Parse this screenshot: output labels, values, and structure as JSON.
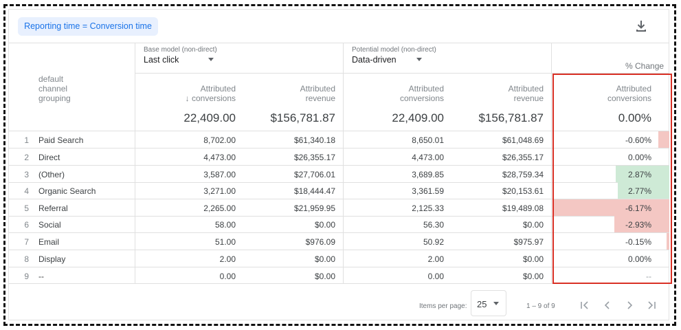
{
  "chip": "Reporting time = Conversion time",
  "icons": {
    "download": "download-icon"
  },
  "base_model": {
    "label": "Base model (non-direct)",
    "value": "Last click"
  },
  "potential_model": {
    "label": "Potential model (non-direct)",
    "value": "Data-driven"
  },
  "pct_change_title": "% Change",
  "columns": {
    "dimension": [
      "default",
      "channel",
      "grouping"
    ],
    "base_conv": [
      "Attributed",
      "conversions"
    ],
    "base_rev": [
      "Attributed",
      "revenue"
    ],
    "pot_conv": [
      "Attributed",
      "conversions"
    ],
    "pot_rev": [
      "Attributed",
      "revenue"
    ],
    "change_conv": [
      "Attributed",
      "conversions"
    ],
    "sort_arrow": "↓"
  },
  "totals": {
    "base_conv": "22,409.00",
    "base_rev": "$156,781.87",
    "pot_conv": "22,409.00",
    "pot_rev": "$156,781.87",
    "change": "0.00%"
  },
  "rows": [
    {
      "n": "1",
      "channel": "Paid Search",
      "base_conv": "8,702.00",
      "base_rev": "$61,340.18",
      "pot_conv": "8,650.01",
      "pot_rev": "$61,048.69",
      "change": "-0.60%",
      "change_value": -0.6
    },
    {
      "n": "2",
      "channel": "Direct",
      "base_conv": "4,473.00",
      "base_rev": "$26,355.17",
      "pot_conv": "4,473.00",
      "pot_rev": "$26,355.17",
      "change": "0.00%",
      "change_value": 0.0
    },
    {
      "n": "3",
      "channel": "(Other)",
      "base_conv": "3,587.00",
      "base_rev": "$27,706.01",
      "pot_conv": "3,689.85",
      "pot_rev": "$28,759.34",
      "change": "2.87%",
      "change_value": 2.87
    },
    {
      "n": "4",
      "channel": "Organic Search",
      "base_conv": "3,271.00",
      "base_rev": "$18,444.47",
      "pot_conv": "3,361.59",
      "pot_rev": "$20,153.61",
      "change": "2.77%",
      "change_value": 2.77
    },
    {
      "n": "5",
      "channel": "Referral",
      "base_conv": "2,265.00",
      "base_rev": "$21,959.95",
      "pot_conv": "2,125.33",
      "pot_rev": "$19,489.08",
      "change": "-6.17%",
      "change_value": -6.17
    },
    {
      "n": "6",
      "channel": "Social",
      "base_conv": "58.00",
      "base_rev": "$0.00",
      "pot_conv": "56.30",
      "pot_rev": "$0.00",
      "change": "-2.93%",
      "change_value": -2.93
    },
    {
      "n": "7",
      "channel": "Email",
      "base_conv": "51.00",
      "base_rev": "$976.09",
      "pot_conv": "50.92",
      "pot_rev": "$975.97",
      "change": "-0.15%",
      "change_value": -0.15
    },
    {
      "n": "8",
      "channel": "Display",
      "base_conv": "2.00",
      "base_rev": "$0.00",
      "pot_conv": "2.00",
      "pot_rev": "$0.00",
      "change": "0.00%",
      "change_value": 0.0
    },
    {
      "n": "9",
      "channel": "--",
      "base_conv": "0.00",
      "base_rev": "$0.00",
      "pot_conv": "0.00",
      "pot_rev": "$0.00",
      "change": "--",
      "change_value": null
    }
  ],
  "pager": {
    "items_label": "Items per page:",
    "items_value": "25",
    "range": "1 – 9 of 9"
  }
}
